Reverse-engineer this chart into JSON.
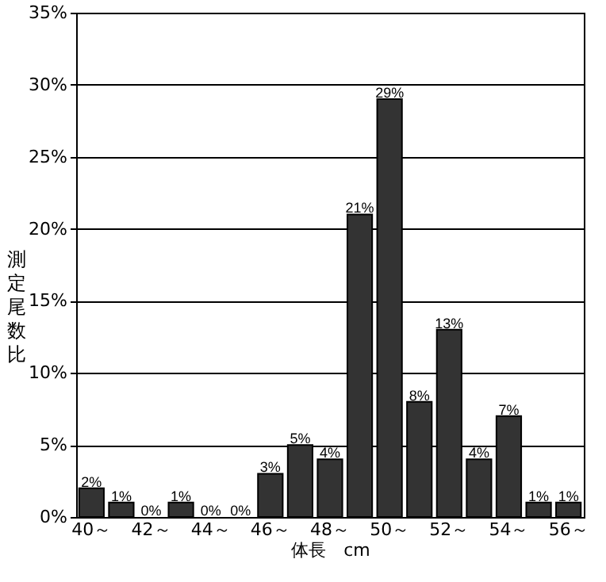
{
  "chart_data": {
    "type": "bar",
    "xlabel": "体長　cm",
    "ylabel": "測定尾数比",
    "categories": [
      "40～",
      null,
      "42～",
      null,
      "44～",
      null,
      "46～",
      null,
      "48～",
      null,
      "50～",
      null,
      "52～",
      null,
      "54～",
      null,
      "56～"
    ],
    "values": [
      2,
      1,
      0,
      1,
      0,
      0,
      3,
      5,
      4,
      21,
      29,
      8,
      13,
      4,
      7,
      1,
      1
    ],
    "value_labels": [
      "2%",
      "1%",
      "0%",
      "1%",
      "0%",
      "0%",
      "3%",
      "5%",
      "4%",
      "21%",
      "29%",
      "8%",
      "13%",
      "4%",
      "7%",
      "1%",
      "1%"
    ],
    "color": "#333333",
    "ylim": [
      0,
      35
    ],
    "yticks": [
      {
        "value": 0,
        "label": "0%"
      },
      {
        "value": 5,
        "label": "5%"
      },
      {
        "value": 10,
        "label": "10%"
      },
      {
        "value": 15,
        "label": "15%"
      },
      {
        "value": 20,
        "label": "20%"
      },
      {
        "value": 25,
        "label": "25%"
      },
      {
        "value": 30,
        "label": "30%"
      },
      {
        "value": 35,
        "label": "35%"
      }
    ],
    "grid": "y"
  }
}
